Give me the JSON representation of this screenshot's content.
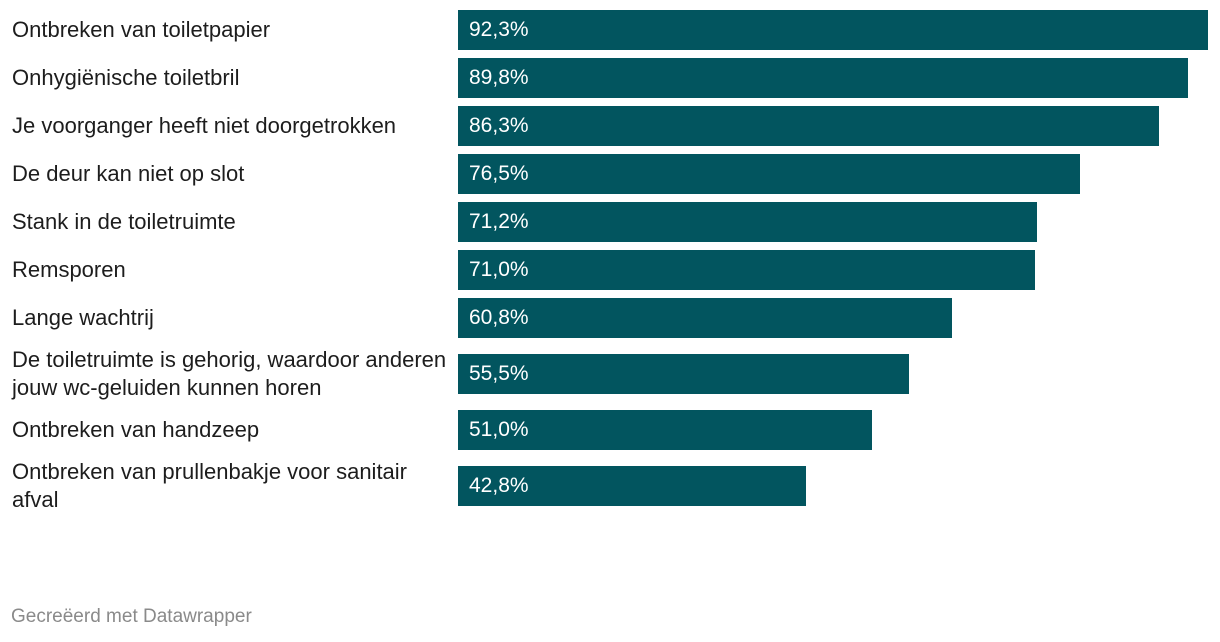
{
  "chart_data": {
    "type": "bar",
    "orientation": "horizontal",
    "categories": [
      "Ontbreken van toiletpapier",
      "Onhygiënische toiletbril",
      "Je voorganger heeft niet doorgetrokken",
      "De deur kan niet op slot",
      "Stank in de toiletruimte",
      "Remsporen",
      "Lange wachtrij",
      "De toiletruimte is gehorig, waardoor anderen jouw wc-geluiden kunnen horen",
      "Ontbreken van handzeep",
      "Ontbreken van prullenbakje voor sanitair afval"
    ],
    "values": [
      92.3,
      89.8,
      86.3,
      76.5,
      71.2,
      71.0,
      60.8,
      55.5,
      51.0,
      42.8
    ],
    "value_labels": [
      "92,3%",
      "89,8%",
      "86,3%",
      "76,5%",
      "71,2%",
      "71,0%",
      "60,8%",
      "55,5%",
      "51,0%",
      "42,8%"
    ],
    "xlim": [
      0,
      92.3
    ],
    "bar_color": "#02555f",
    "value_label_color": "#ffffff",
    "grid": false,
    "legend": "none"
  },
  "footer": {
    "credit": "Gecreëerd met Datawrapper"
  }
}
